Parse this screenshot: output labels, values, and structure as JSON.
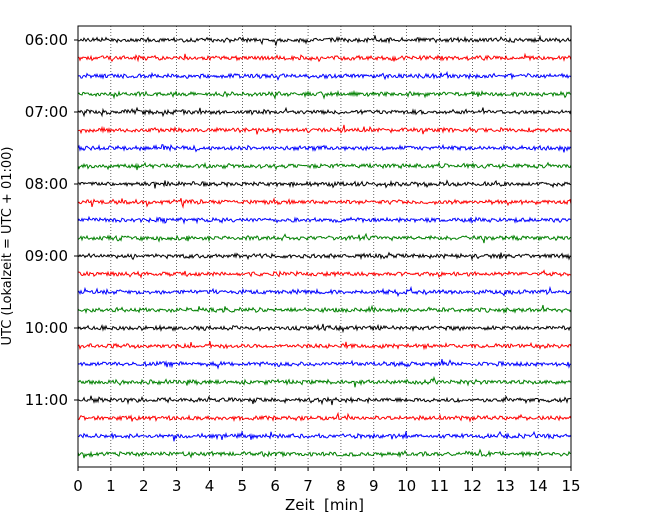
{
  "chart_data": {
    "type": "line",
    "subtype": "helicorder",
    "xlabel": "Zeit  [min]",
    "ylabel": "UTC (Lokalzeit = UTC + 01:00)",
    "xlim": [
      0,
      15
    ],
    "x_ticks": [
      0,
      1,
      2,
      3,
      4,
      5,
      6,
      7,
      8,
      9,
      10,
      11,
      12,
      13,
      14,
      15
    ],
    "y_tick_labels": [
      "06:00",
      "07:00",
      "08:00",
      "09:00",
      "10:00",
      "11:00"
    ],
    "trace_minutes": 15,
    "start_time": "06:00",
    "trace_count": 24,
    "trace_colors": [
      "#000000",
      "#ff0000",
      "#0000ff",
      "#008000"
    ],
    "vertical_gridlines": "dotted",
    "traces": [
      {
        "start": "06:00"
      },
      {
        "start": "06:15"
      },
      {
        "start": "06:30"
      },
      {
        "start": "06:45"
      },
      {
        "start": "07:00"
      },
      {
        "start": "07:15"
      },
      {
        "start": "07:30"
      },
      {
        "start": "07:45"
      },
      {
        "start": "08:00"
      },
      {
        "start": "08:15"
      },
      {
        "start": "08:30"
      },
      {
        "start": "08:45"
      },
      {
        "start": "09:00"
      },
      {
        "start": "09:15"
      },
      {
        "start": "09:30"
      },
      {
        "start": "09:45"
      },
      {
        "start": "10:00"
      },
      {
        "start": "10:15"
      },
      {
        "start": "10:30"
      },
      {
        "start": "10:45"
      },
      {
        "start": "11:00"
      },
      {
        "start": "11:15"
      },
      {
        "start": "11:30"
      },
      {
        "start": "11:45"
      }
    ]
  }
}
